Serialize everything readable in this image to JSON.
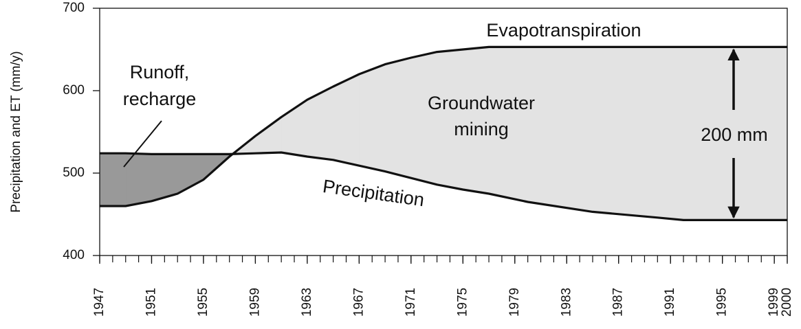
{
  "chart_data": {
    "type": "line",
    "y_label": "Precipitation and ET (mm/y)",
    "x": [
      1947,
      1949,
      1951,
      1953,
      1955,
      1957,
      1959,
      1961,
      1963,
      1965,
      1967,
      1969,
      1971,
      1973,
      1975,
      1977,
      1980,
      1985,
      1990,
      1992,
      2000
    ],
    "series": [
      {
        "name": "Evapotranspiration",
        "color": "#111111",
        "values": [
          460,
          460,
          466,
          475,
          492,
          520,
          545,
          568,
          589,
          605,
          620,
          632,
          640,
          647,
          650,
          653,
          653,
          653,
          653,
          653,
          653
        ]
      },
      {
        "name": "Precipitation",
        "color": "#111111",
        "values": [
          524,
          524,
          523,
          523,
          523,
          523,
          524,
          525,
          520,
          516,
          509,
          502,
          494,
          486,
          480,
          475,
          465,
          453,
          446,
          443,
          443
        ]
      }
    ],
    "annotations": [
      "Groundwater",
      "mining",
      "Runoff,",
      "recharge",
      "200 mm"
    ],
    "xlim": [
      1947,
      2000
    ],
    "xticks": [
      1947,
      1951,
      1955,
      1959,
      1963,
      1967,
      1971,
      1975,
      1979,
      1983,
      1987,
      1991,
      1995,
      1999,
      2000
    ],
    "ylim": [
      400,
      700
    ],
    "yticks": [
      400,
      500,
      600,
      700
    ],
    "fill_colors": [
      "#e3e3e3",
      "#999999"
    ]
  }
}
